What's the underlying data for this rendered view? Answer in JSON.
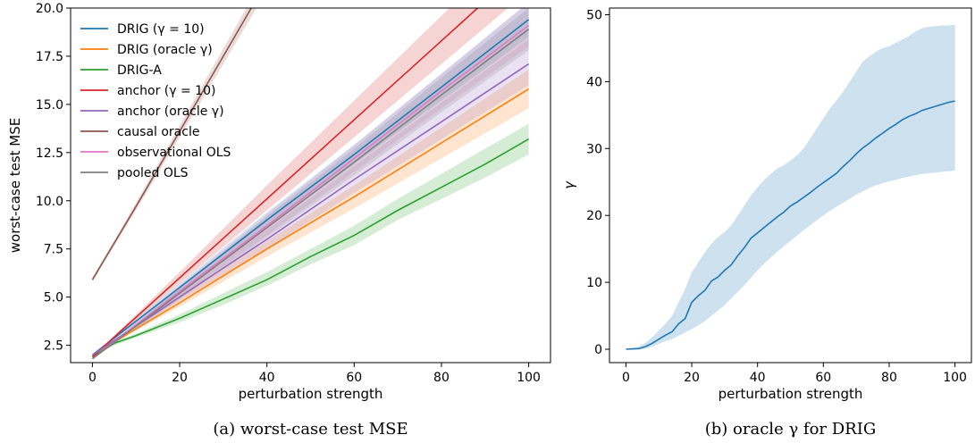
{
  "chart_data": [
    {
      "type": "line",
      "panel": "a",
      "caption": "(a) worst-case test MSE",
      "xlabel": "perturbation strength",
      "ylabel": "worst-case test MSE",
      "xlim": [
        -5,
        105
      ],
      "ylim": [
        1.6,
        20.0
      ],
      "xticks": [
        0,
        20,
        40,
        60,
        80,
        100
      ],
      "yticks": [
        2.5,
        5.0,
        7.5,
        10.0,
        12.5,
        15.0,
        17.5,
        20.0
      ],
      "ytick_labels": [
        "2.5",
        "5.0",
        "7.5",
        "10.0",
        "12.5",
        "15.0",
        "17.5",
        "20.0"
      ],
      "legend_position": "top-left",
      "grid": false,
      "series": [
        {
          "name": "DRIG (γ = 10)",
          "color": "#1f77b4",
          "x": [
            0,
            20,
            40,
            60,
            80,
            100
          ],
          "y": [
            2.0,
            5.5,
            9.0,
            12.4,
            15.9,
            19.4
          ],
          "band": [
            [
              2.0,
              2.0
            ],
            [
              5.3,
              5.7
            ],
            [
              8.6,
              9.4
            ],
            [
              11.9,
              12.9
            ],
            [
              15.2,
              16.6
            ],
            [
              18.5,
              20.3
            ]
          ]
        },
        {
          "name": "DRIG (oracle γ)",
          "color": "#ff7f0e",
          "x": [
            0,
            20,
            40,
            60,
            80,
            100
          ],
          "y": [
            2.0,
            4.7,
            7.5,
            10.2,
            13.0,
            15.8
          ],
          "band": [
            [
              2.0,
              2.0
            ],
            [
              4.5,
              5.0
            ],
            [
              7.1,
              7.9
            ],
            [
              9.6,
              10.8
            ],
            [
              12.2,
              13.8
            ],
            [
              14.8,
              16.8
            ]
          ]
        },
        {
          "name": "DRIG-A",
          "color": "#2ca02c",
          "x": [
            0,
            5,
            10,
            20,
            30,
            40,
            50,
            60,
            70,
            80,
            90,
            100
          ],
          "y": [
            1.9,
            2.6,
            3.0,
            3.9,
            4.9,
            5.9,
            7.1,
            8.2,
            9.5,
            10.7,
            11.9,
            13.2
          ],
          "band": [
            [
              1.9,
              1.9
            ],
            [
              2.5,
              2.7
            ],
            [
              2.9,
              3.1
            ],
            [
              3.7,
              4.1
            ],
            [
              4.6,
              5.2
            ],
            [
              5.6,
              6.3
            ],
            [
              6.7,
              7.5
            ],
            [
              7.7,
              8.7
            ],
            [
              9.0,
              10.1
            ],
            [
              10.1,
              11.4
            ],
            [
              11.2,
              12.7
            ],
            [
              12.4,
              14.0
            ]
          ]
        },
        {
          "name": "anchor (γ = 10)",
          "color": "#d62728",
          "x": [
            0,
            20,
            40,
            60,
            80,
            100
          ],
          "y": [
            1.9,
            6.0,
            10.1,
            14.2,
            18.3,
            22.4
          ],
          "band": [
            [
              1.9,
              1.9
            ],
            [
              5.7,
              6.3
            ],
            [
              9.5,
              10.8
            ],
            [
              13.3,
              15.2
            ],
            [
              17.1,
              19.6
            ],
            [
              20.9,
              24.0
            ]
          ]
        },
        {
          "name": "anchor (oracle γ)",
          "color": "#9467bd",
          "x": [
            0,
            20,
            40,
            60,
            80,
            100
          ],
          "y": [
            2.0,
            5.0,
            8.0,
            11.1,
            14.1,
            17.1
          ],
          "band": [
            [
              2.0,
              2.0
            ],
            [
              4.8,
              5.3
            ],
            [
              7.5,
              8.5
            ],
            [
              10.4,
              11.8
            ],
            [
              13.2,
              15.1
            ],
            [
              16.0,
              18.4
            ]
          ]
        },
        {
          "name": "causal oracle",
          "color": "#8c564b",
          "x": [
            0,
            10,
            20,
            30,
            40
          ],
          "y": [
            5.9,
            9.7,
            13.6,
            17.5,
            21.4
          ],
          "band": [
            [
              5.8,
              6.0
            ],
            [
              9.5,
              9.9
            ],
            [
              13.3,
              13.9
            ],
            [
              17.1,
              17.9
            ],
            [
              20.9,
              21.9
            ]
          ]
        },
        {
          "name": "observational OLS",
          "color": "#e377c2",
          "x": [
            0,
            20,
            40,
            60,
            80,
            100
          ],
          "y": [
            1.8,
            5.3,
            8.7,
            12.2,
            15.7,
            19.1
          ],
          "band": [
            [
              1.8,
              1.8
            ],
            [
              5.0,
              5.6
            ],
            [
              8.2,
              9.3
            ],
            [
              11.5,
              12.9
            ],
            [
              14.8,
              16.6
            ],
            [
              18.0,
              20.3
            ]
          ]
        },
        {
          "name": "pooled OLS",
          "color": "#7f7f7f",
          "x": [
            0,
            20,
            40,
            60,
            80,
            100
          ],
          "y": [
            1.8,
            5.2,
            8.6,
            12.0,
            15.5,
            18.9
          ],
          "band": [
            [
              1.8,
              1.8
            ],
            [
              4.9,
              5.5
            ],
            [
              8.1,
              9.2
            ],
            [
              11.3,
              12.7
            ],
            [
              14.6,
              16.4
            ],
            [
              17.8,
              20.0
            ]
          ]
        }
      ]
    },
    {
      "type": "line",
      "panel": "b",
      "caption": "(b) oracle γ for DRIG",
      "xlabel": "perturbation strength",
      "ylabel": "γ",
      "xlim": [
        -5,
        105
      ],
      "ylim": [
        -2,
        51
      ],
      "xticks": [
        0,
        20,
        40,
        60,
        80,
        100
      ],
      "yticks": [
        0,
        10,
        20,
        30,
        40,
        50
      ],
      "ytick_labels": [
        "0",
        "10",
        "20",
        "30",
        "40",
        "50"
      ],
      "grid": false,
      "series": [
        {
          "name": "",
          "color": "#1f77b4",
          "x": [
            0,
            4,
            6,
            8,
            10,
            12,
            14,
            16,
            18,
            20,
            22,
            24,
            26,
            28,
            30,
            32,
            34,
            36,
            38,
            40,
            42,
            44,
            46,
            48,
            50,
            52,
            54,
            56,
            58,
            60,
            62,
            64,
            66,
            68,
            70,
            72,
            74,
            76,
            78,
            80,
            82,
            84,
            86,
            88,
            90,
            92,
            94,
            96,
            98,
            100
          ],
          "y": [
            0,
            0.1,
            0.4,
            0.9,
            1.5,
            2.1,
            2.6,
            3.8,
            4.6,
            7.0,
            8.0,
            8.8,
            10.2,
            10.8,
            11.8,
            12.6,
            14.0,
            15.2,
            16.6,
            17.4,
            18.2,
            19.0,
            19.8,
            20.5,
            21.4,
            22.0,
            22.7,
            23.4,
            24.2,
            24.9,
            25.6,
            26.3,
            27.3,
            28.2,
            29.2,
            30.1,
            30.8,
            31.6,
            32.3,
            33.0,
            33.6,
            34.3,
            34.8,
            35.2,
            35.7,
            36.0,
            36.3,
            36.6,
            36.9,
            37.1
          ],
          "lower": [
            0,
            0.0,
            0.1,
            0.4,
            0.8,
            1.2,
            1.5,
            2.0,
            2.5,
            3.0,
            3.6,
            4.2,
            5.0,
            5.8,
            6.6,
            7.6,
            8.6,
            9.6,
            10.7,
            11.8,
            12.8,
            13.7,
            14.6,
            15.4,
            16.2,
            17.0,
            17.8,
            18.5,
            19.3,
            20.0,
            20.7,
            21.3,
            21.9,
            22.5,
            23.1,
            23.6,
            24.1,
            24.5,
            24.8,
            25.1,
            25.3,
            25.6,
            25.8,
            26.0,
            26.2,
            26.3,
            26.4,
            26.5,
            26.6,
            26.7
          ],
          "upper": [
            0,
            0.4,
            1.0,
            1.8,
            2.8,
            3.8,
            5.0,
            7.0,
            9.0,
            11.5,
            13.0,
            14.5,
            15.8,
            16.8,
            17.5,
            18.5,
            20.0,
            21.5,
            23.0,
            24.2,
            25.3,
            26.2,
            27.0,
            27.5,
            28.2,
            29.0,
            30.0,
            31.5,
            33.0,
            34.5,
            36.0,
            37.2,
            38.5,
            40.0,
            41.5,
            43.0,
            43.8,
            44.5,
            45.0,
            45.3,
            45.8,
            46.3,
            46.8,
            47.5,
            48.0,
            48.2,
            48.3,
            48.4,
            48.4,
            48.5
          ]
        }
      ]
    }
  ]
}
